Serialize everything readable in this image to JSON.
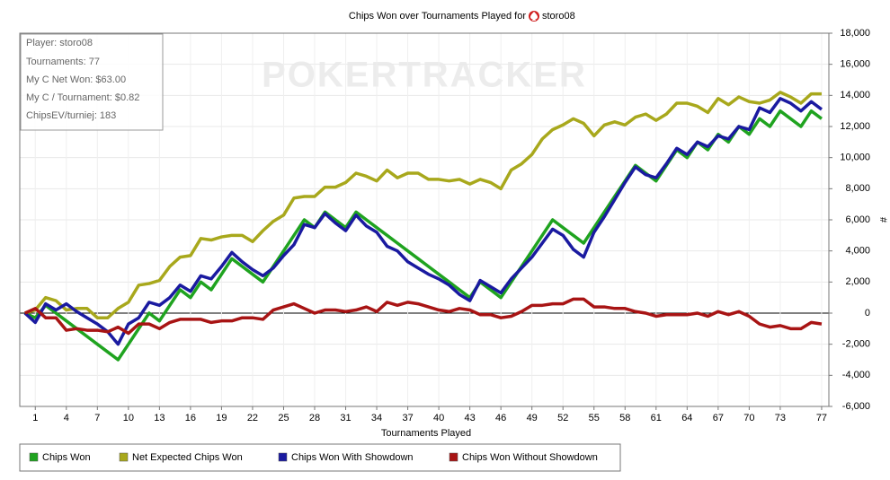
{
  "chart_data": {
    "type": "line",
    "title": "Chips Won over Tournaments Played for",
    "player": "storo08",
    "watermark": "POKERTRACKER",
    "info_box": [
      "Player: storo08",
      "Tournaments: 77",
      "My C Net Won: $63.00",
      "My C / Tournament: $0.82",
      "ChipsEV/turniej: 183"
    ],
    "x_label": "Tournaments Played",
    "y_label": "#",
    "grid": true,
    "xlim": [
      -0.5,
      77.7
    ],
    "xticks": [
      1,
      4,
      7,
      10,
      13,
      16,
      19,
      22,
      25,
      28,
      31,
      34,
      37,
      40,
      43,
      46,
      49,
      52,
      55,
      58,
      61,
      64,
      67,
      70,
      73,
      77
    ],
    "ylim": [
      -6000,
      18000
    ],
    "yticks": [
      {
        "value": -6000,
        "label": "-6,000"
      },
      {
        "value": -4000,
        "label": "-4,000"
      },
      {
        "value": -2000,
        "label": "-2,000"
      },
      0,
      {
        "value": 2000,
        "label": "2,000"
      },
      {
        "value": 4000,
        "label": "4,000"
      },
      {
        "value": 6000,
        "label": "6,000"
      },
      {
        "value": 8000,
        "label": "8,000"
      },
      {
        "value": 10000,
        "label": "10,000"
      },
      {
        "value": 12000,
        "label": "12,000"
      },
      {
        "value": 14000,
        "label": "14,000"
      },
      {
        "value": 16000,
        "label": "16,000"
      },
      {
        "value": 18000,
        "label": "18,000"
      }
    ],
    "x": [
      0,
      1,
      2,
      3,
      4,
      5,
      6,
      7,
      8,
      9,
      10,
      11,
      12,
      13,
      14,
      15,
      16,
      17,
      18,
      19,
      20,
      21,
      22,
      23,
      24,
      25,
      26,
      27,
      28,
      29,
      30,
      31,
      32,
      33,
      34,
      35,
      36,
      37,
      38,
      39,
      40,
      41,
      42,
      43,
      44,
      45,
      46,
      47,
      48,
      49,
      50,
      51,
      52,
      53,
      54,
      55,
      56,
      57,
      58,
      59,
      60,
      61,
      62,
      63,
      64,
      65,
      66,
      67,
      68,
      69,
      70,
      71,
      72,
      73,
      74,
      75,
      76,
      77
    ],
    "series": [
      {
        "name": "Chips Won",
        "color": "#1fa31f",
        "values": [
          0,
          -300,
          500,
          0,
          -500,
          -1000,
          -1500,
          -2000,
          -2500,
          -3000,
          -2000,
          -1000,
          0,
          -500,
          500,
          1500,
          1000,
          2000,
          1500,
          2500,
          3500,
          3000,
          2500,
          2000,
          3000,
          4000,
          5000,
          6000,
          5500,
          6500,
          6000,
          5500,
          6500,
          6000,
          5500,
          5000,
          4500,
          4000,
          3500,
          3000,
          2500,
          2000,
          1500,
          1000,
          2000,
          1500,
          1000,
          2000,
          3000,
          4000,
          5000,
          6000,
          5500,
          5000,
          4500,
          5500,
          6500,
          7500,
          8500,
          9500,
          9000,
          8500,
          9500,
          10500,
          10000,
          11000,
          10500,
          11500,
          11000,
          12000,
          11500,
          12500,
          12000,
          13000,
          12500,
          12000,
          13000,
          12500
        ]
      },
      {
        "name": "Net Expected Chips Won",
        "color": "#a8a81c",
        "values": [
          0,
          200,
          1000,
          800,
          200,
          300,
          300,
          -300,
          -300,
          300,
          700,
          1800,
          1900,
          2100,
          3000,
          3600,
          3700,
          4800,
          4700,
          4900,
          5000,
          5000,
          4600,
          5300,
          5900,
          6300,
          7400,
          7500,
          7500,
          8100,
          8100,
          8400,
          9000,
          8800,
          8500,
          9200,
          8700,
          9000,
          9000,
          8600,
          8600,
          8500,
          8600,
          8300,
          8600,
          8400,
          8000,
          9200,
          9600,
          10200,
          11200,
          11800,
          12100,
          12500,
          12200,
          11400,
          12100,
          12300,
          12100,
          12600,
          12800,
          12400,
          12800,
          13500,
          13500,
          13300,
          12900,
          13800,
          13400,
          13900,
          13600,
          13500,
          13700,
          14200,
          13900,
          13500,
          14100,
          14100
        ]
      },
      {
        "name": "Chips Won With Showdown",
        "color": "#1a1aa0",
        "values": [
          0,
          -600,
          600,
          200,
          600,
          100,
          -300,
          -700,
          -1200,
          -2000,
          -700,
          -300,
          700,
          500,
          1000,
          1800,
          1400,
          2400,
          2200,
          3000,
          3900,
          3300,
          2800,
          2400,
          2900,
          3700,
          4400,
          5700,
          5500,
          6400,
          5800,
          5300,
          6300,
          5600,
          5200,
          4300,
          4000,
          3300,
          2900,
          2500,
          2200,
          1800,
          1200,
          800,
          2100,
          1700,
          1300,
          2200,
          2900,
          3600,
          4500,
          5400,
          5000,
          4100,
          3600,
          5200,
          6200,
          7300,
          8400,
          9400,
          8900,
          8700,
          9600,
          10600,
          10200,
          11000,
          10700,
          11400,
          11200,
          12000,
          11800,
          13200,
          12900,
          13800,
          13500,
          13000,
          13600,
          13100
        ]
      },
      {
        "name": "Chips Won Without Showdown",
        "color": "#a81414",
        "values": [
          0,
          300,
          -300,
          -300,
          -1100,
          -1000,
          -1100,
          -1100,
          -1200,
          -900,
          -1300,
          -700,
          -700,
          -1000,
          -600,
          -400,
          -400,
          -400,
          -600,
          -500,
          -500,
          -300,
          -300,
          -400,
          200,
          400,
          600,
          300,
          0,
          200,
          200,
          100,
          200,
          400,
          100,
          700,
          500,
          700,
          600,
          400,
          200,
          100,
          300,
          200,
          -100,
          -100,
          -300,
          -200,
          100,
          500,
          500,
          600,
          600,
          900,
          900,
          400,
          400,
          300,
          300,
          100,
          0,
          -200,
          -100,
          -100,
          -100,
          0,
          -200,
          100,
          -100,
          100,
          -200,
          -700,
          -900,
          -800,
          -1000,
          -1000,
          -600,
          -700
        ]
      }
    ]
  }
}
